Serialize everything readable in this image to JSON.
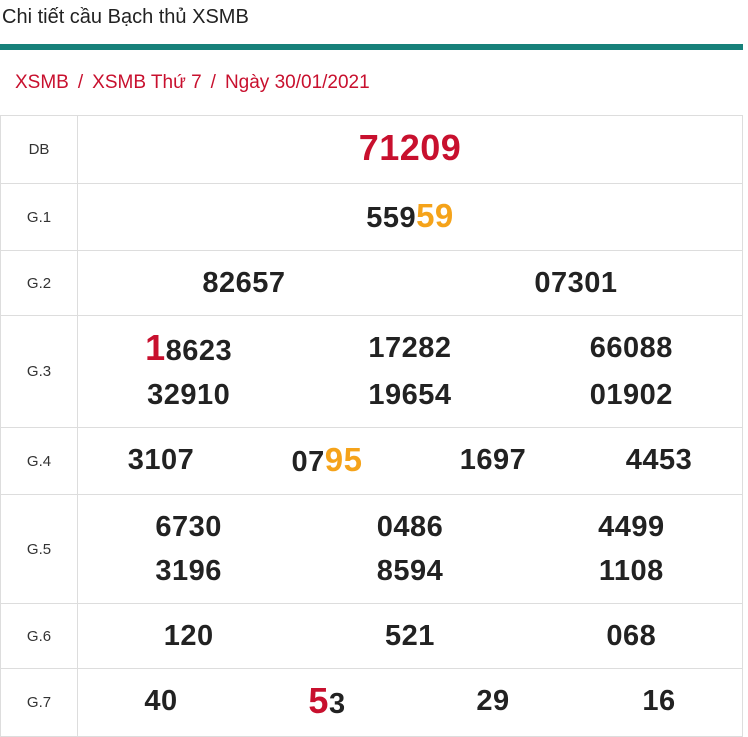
{
  "header": {
    "title": "Chi tiết cầu Bạch thủ XSMB"
  },
  "breadcrumb": {
    "items": [
      "XSMB",
      "XSMB Thứ 7",
      "Ngày 30/01/2021"
    ],
    "separator": "/"
  },
  "table": {
    "rows": [
      {
        "label": "DB",
        "columns": 1,
        "numbers": [
          [
            {
              "text": "71209",
              "accent": "red"
            }
          ]
        ]
      },
      {
        "label": "G.1",
        "columns": 1,
        "numbers": [
          [
            {
              "text": "559"
            },
            {
              "text": "59",
              "accent": "orange"
            }
          ]
        ]
      },
      {
        "label": "G.2",
        "columns": 2,
        "numbers": [
          [
            {
              "text": "82657"
            }
          ],
          [
            {
              "text": "07301"
            }
          ]
        ]
      },
      {
        "label": "G.3",
        "columns": 3,
        "numbers": [
          [
            {
              "text": "1",
              "accent": "red"
            },
            {
              "text": "8623"
            }
          ],
          [
            {
              "text": "17282"
            }
          ],
          [
            {
              "text": "66088"
            }
          ],
          [
            {
              "text": "32910"
            }
          ],
          [
            {
              "text": "19654"
            }
          ],
          [
            {
              "text": "01902"
            }
          ]
        ]
      },
      {
        "label": "G.4",
        "columns": 4,
        "numbers": [
          [
            {
              "text": "3107"
            }
          ],
          [
            {
              "text": "07"
            },
            {
              "text": "95",
              "accent": "orange"
            }
          ],
          [
            {
              "text": "1697"
            }
          ],
          [
            {
              "text": "4453"
            }
          ]
        ]
      },
      {
        "label": "G.5",
        "columns": 3,
        "numbers": [
          [
            {
              "text": "6730"
            }
          ],
          [
            {
              "text": "0486"
            }
          ],
          [
            {
              "text": "4499"
            }
          ],
          [
            {
              "text": "3196"
            }
          ],
          [
            {
              "text": "8594"
            }
          ],
          [
            {
              "text": "1108"
            }
          ]
        ]
      },
      {
        "label": "G.6",
        "columns": 3,
        "numbers": [
          [
            {
              "text": "120"
            }
          ],
          [
            {
              "text": "521"
            }
          ],
          [
            {
              "text": "068"
            }
          ]
        ]
      },
      {
        "label": "G.7",
        "columns": 4,
        "numbers": [
          [
            {
              "text": "40"
            }
          ],
          [
            {
              "text": "5",
              "accent": "red"
            },
            {
              "text": "3"
            }
          ],
          [
            {
              "text": "29"
            }
          ],
          [
            {
              "text": "16"
            }
          ]
        ]
      }
    ]
  }
}
